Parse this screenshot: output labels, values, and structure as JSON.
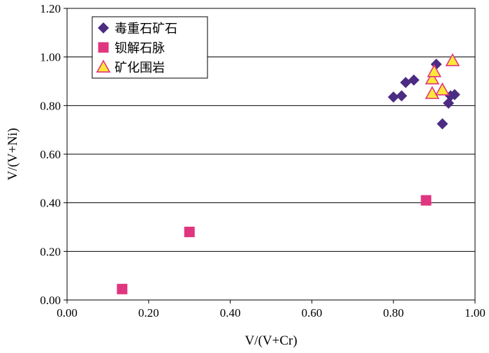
{
  "chart_data": {
    "type": "scatter",
    "xlabel": "V/(V+Cr)",
    "ylabel": "V/(V+Ni)",
    "xlim": [
      0,
      1
    ],
    "ylim": [
      0,
      1.2
    ],
    "xticks": [
      "0.00",
      "0.20",
      "0.40",
      "0.60",
      "0.80",
      "1.00"
    ],
    "yticks": [
      "0.00",
      "0.20",
      "0.40",
      "0.60",
      "0.80",
      "1.00",
      "1.20"
    ],
    "grid": "horizontal",
    "legend_position": "top-left",
    "series": [
      {
        "name": "毒重石矿石",
        "marker": "diamond",
        "color": "#4B2C82",
        "points": [
          [
            0.8,
            0.835
          ],
          [
            0.82,
            0.84
          ],
          [
            0.83,
            0.895
          ],
          [
            0.85,
            0.905
          ],
          [
            0.905,
            0.97
          ],
          [
            0.92,
            0.725
          ],
          [
            0.935,
            0.81
          ],
          [
            0.94,
            0.84
          ],
          [
            0.95,
            0.845
          ]
        ]
      },
      {
        "name": "钡解石脉",
        "marker": "square",
        "color": "#E0367F",
        "points": [
          [
            0.135,
            0.045
          ],
          [
            0.3,
            0.28
          ],
          [
            0.88,
            0.41
          ]
        ]
      },
      {
        "name": "矿化围岩",
        "marker": "triangle",
        "color": "#FFE838",
        "stroke": "#E0367F",
        "points": [
          [
            0.895,
            0.85
          ],
          [
            0.895,
            0.91
          ],
          [
            0.9,
            0.94
          ],
          [
            0.92,
            0.865
          ],
          [
            0.945,
            0.985
          ]
        ]
      }
    ]
  }
}
